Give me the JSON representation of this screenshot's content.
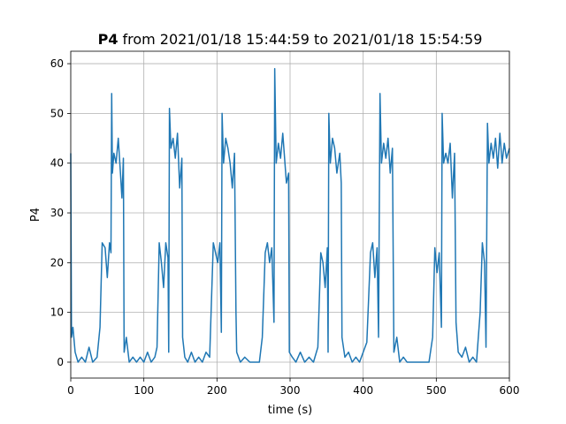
{
  "chart_data": {
    "type": "line",
    "title_prefix": "P4",
    "title": "from 2021/01/18 15:44:59 to 2021/01/18 15:54:59",
    "xlabel": "time (s)",
    "ylabel": "P4",
    "color": "#1f77b4",
    "x": [
      0,
      1,
      3,
      6,
      10,
      15,
      20,
      25,
      30,
      36,
      40,
      43,
      47,
      50,
      53,
      55,
      56,
      57,
      59,
      62,
      65,
      68,
      70,
      72,
      73,
      76,
      80,
      85,
      90,
      95,
      100,
      105,
      110,
      115,
      118,
      121,
      124,
      127,
      130,
      133,
      134,
      135,
      137,
      140,
      143,
      146,
      149,
      152,
      153,
      156,
      160,
      165,
      170,
      175,
      180,
      185,
      190,
      195,
      198,
      201,
      204,
      206,
      207,
      209,
      212,
      215,
      218,
      221,
      224,
      226,
      227,
      232,
      238,
      245,
      252,
      258,
      262,
      266,
      269,
      272,
      275,
      278,
      279,
      281,
      284,
      287,
      290,
      293,
      295,
      298,
      299,
      303,
      308,
      314,
      320,
      326,
      332,
      338,
      342,
      345,
      348,
      351,
      352,
      353,
      355,
      358,
      361,
      364,
      368,
      370,
      371,
      375,
      380,
      385,
      390,
      395,
      400,
      405,
      410,
      413,
      416,
      419,
      421,
      423,
      425,
      428,
      431,
      434,
      437,
      440,
      442,
      446,
      450,
      455,
      460,
      470,
      480,
      490,
      495,
      498,
      501,
      504,
      507,
      508,
      510,
      513,
      516,
      519,
      522,
      525,
      527,
      530,
      535,
      540,
      545,
      550,
      555,
      560,
      563,
      566,
      568,
      570,
      572,
      575,
      578,
      581,
      584,
      587,
      590,
      593,
      596,
      600
    ],
    "values": [
      42,
      5,
      7,
      2,
      0,
      1,
      0,
      3,
      0,
      1,
      7,
      24,
      23,
      17,
      24,
      22,
      54,
      38,
      42,
      40,
      45,
      38,
      33,
      41,
      2,
      5,
      0,
      1,
      0,
      1,
      0,
      2,
      0,
      1,
      3,
      24,
      20,
      15,
      24,
      21,
      2,
      51,
      43,
      45,
      41,
      46,
      35,
      41,
      5,
      1,
      0,
      2,
      0,
      1,
      0,
      2,
      1,
      24,
      22,
      20,
      24,
      6,
      50,
      40,
      45,
      43,
      40,
      35,
      42,
      10,
      2,
      0,
      1,
      0,
      0,
      0,
      5,
      22,
      24,
      20,
      23,
      8,
      59,
      40,
      44,
      41,
      46,
      40,
      36,
      38,
      2,
      1,
      0,
      2,
      0,
      1,
      0,
      3,
      22,
      20,
      15,
      23,
      2,
      50,
      40,
      45,
      43,
      38,
      42,
      36,
      5,
      1,
      2,
      0,
      1,
      0,
      2,
      4,
      22,
      24,
      17,
      23,
      5,
      54,
      40,
      44,
      41,
      45,
      38,
      43,
      2,
      5,
      0,
      1,
      0,
      0,
      0,
      0,
      5,
      23,
      18,
      22,
      7,
      50,
      40,
      42,
      40,
      44,
      33,
      42,
      8,
      2,
      1,
      3,
      0,
      1,
      0,
      10,
      24,
      20,
      3,
      48,
      40,
      44,
      41,
      45,
      39,
      46,
      40,
      44,
      41,
      43
    ],
    "xlim": [
      0,
      600
    ],
    "ylim": [
      -3.2,
      62.5
    ],
    "xticks": [
      0,
      100,
      200,
      300,
      400,
      500,
      600
    ],
    "yticks": [
      0,
      10,
      20,
      30,
      40,
      50,
      60
    ],
    "grid": true
  }
}
